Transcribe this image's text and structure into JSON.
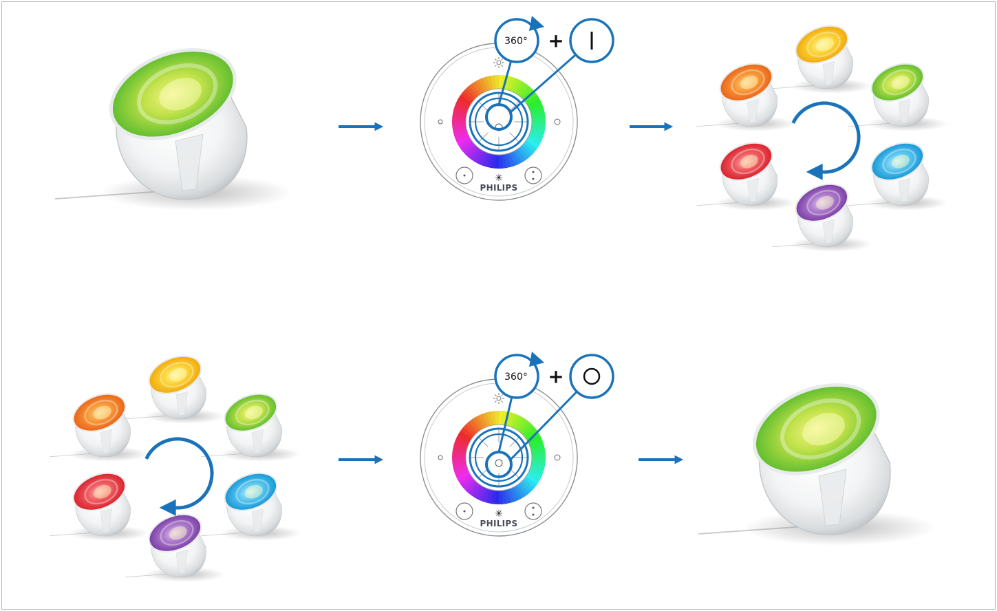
{
  "brand": "PHILIPS",
  "step_top": {
    "rotation_label": "360°",
    "plus": "+",
    "switch_icon": "on-bar-icon"
  },
  "step_bottom": {
    "rotation_label": "360°",
    "plus": "+",
    "switch_icon": "off-circle-icon"
  },
  "colors": {
    "accent_blue": "#1a73ba",
    "lamp_green": "#6fc43b",
    "lamp_yellow": "#f4c20f",
    "lamp_orange": "#f07f1b",
    "lamp_red": "#e53a3f",
    "lamp_blue": "#29aee2",
    "lamp_purple": "#8e52b5"
  },
  "lamp_cluster_colors": [
    "yellow",
    "green",
    "blue",
    "purple",
    "red",
    "orange"
  ]
}
